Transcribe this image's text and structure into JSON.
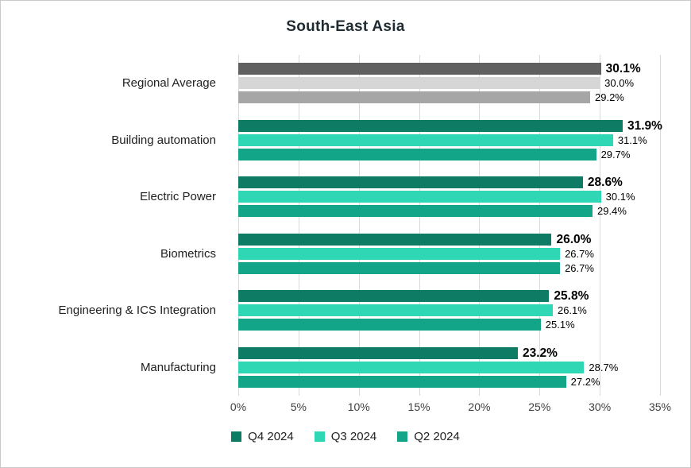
{
  "chart_data": {
    "type": "bar",
    "orientation": "horizontal",
    "title": "South-East Asia",
    "categories": [
      "Regional Average",
      "Building automation",
      "Electric Power",
      "Biometrics",
      "Engineering & ICS Integration",
      "Manufacturing"
    ],
    "series": [
      {
        "name": "Q4 2024",
        "color": "#0e7c64",
        "values": [
          30.1,
          31.9,
          28.6,
          26.0,
          25.8,
          23.2
        ],
        "labels": [
          "30.1%",
          "31.9%",
          "28.6%",
          "26.0%",
          "25.8%",
          "23.2%"
        ]
      },
      {
        "name": "Q3 2024",
        "color": "#2fd7b5",
        "values": [
          30.0,
          31.1,
          30.1,
          26.7,
          26.1,
          28.7
        ],
        "labels": [
          "30.0%",
          "31.1%",
          "30.1%",
          "26.7%",
          "26.1%",
          "28.7%"
        ]
      },
      {
        "name": "Q2 2024",
        "color": "#12a588",
        "values": [
          29.2,
          29.7,
          29.4,
          26.7,
          25.1,
          27.2
        ],
        "labels": [
          "29.2%",
          "29.7%",
          "29.4%",
          "26.7%",
          "25.1%",
          "27.2%"
        ]
      }
    ],
    "regional_average_colors": [
      "#606060",
      "#d6d6d6",
      "#a6a6a6"
    ],
    "xlim": [
      0,
      35
    ],
    "x_ticks": [
      {
        "value": 0,
        "label": "0%"
      },
      {
        "value": 5,
        "label": "5%"
      },
      {
        "value": 10,
        "label": "10%"
      },
      {
        "value": 15,
        "label": "15%"
      },
      {
        "value": 20,
        "label": "20%"
      },
      {
        "value": 25,
        "label": "25%"
      },
      {
        "value": 30,
        "label": "30%"
      },
      {
        "value": 35,
        "label": "35%"
      }
    ],
    "grid": true,
    "legend_position": "bottom"
  }
}
